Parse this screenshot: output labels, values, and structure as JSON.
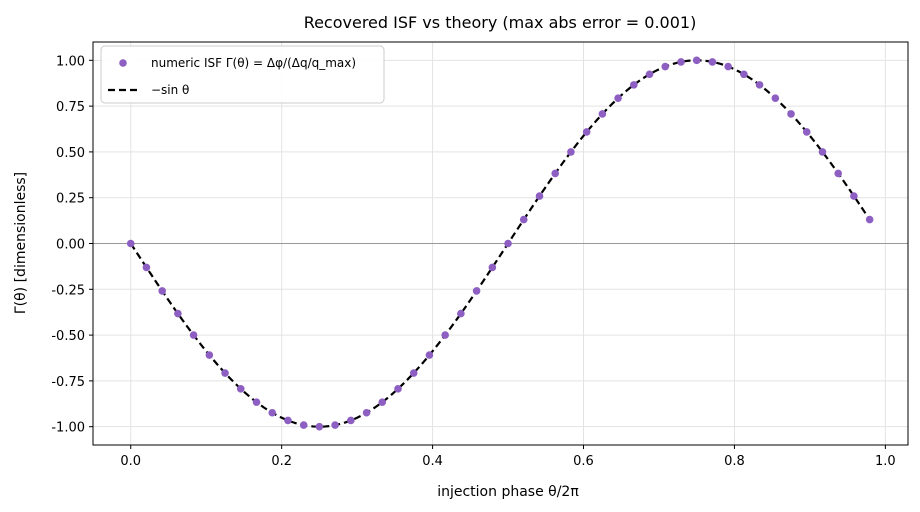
{
  "chart_data": {
    "type": "scatter",
    "title": "Recovered ISF vs theory (max abs error = 0.001)",
    "xlabel": "injection phase θ/2π",
    "ylabel": "Γ(θ) [dimensionless]",
    "xlim": [
      -0.05,
      1.03
    ],
    "ylim": [
      -1.1,
      1.1
    ],
    "x_ticks": [
      0.0,
      0.2,
      0.4,
      0.6,
      0.8,
      1.0
    ],
    "x_tick_labels": [
      "0.0",
      "0.2",
      "0.4",
      "0.6",
      "0.8",
      "1.0"
    ],
    "y_ticks": [
      1.0,
      0.75,
      0.5,
      0.25,
      0.0,
      -0.25,
      -0.5,
      -0.75,
      -1.0
    ],
    "y_tick_labels": [
      "1.00",
      "0.75",
      "0.50",
      "0.25",
      "0.00",
      "-0.25",
      "-0.50",
      "-0.75",
      "-1.00"
    ],
    "grid": true,
    "legend_position": "top-left",
    "series": [
      {
        "name": "numeric ISF Γ(θ) = Δφ/(Δq/q_max)",
        "kind": "scatter",
        "color": "#8e5fc2",
        "x": [
          0.0,
          0.0208,
          0.0417,
          0.0625,
          0.0833,
          0.1042,
          0.125,
          0.1458,
          0.1667,
          0.1875,
          0.2083,
          0.2292,
          0.25,
          0.2708,
          0.2917,
          0.3125,
          0.3333,
          0.3542,
          0.375,
          0.3958,
          0.4167,
          0.4375,
          0.4583,
          0.4792,
          0.5,
          0.5208,
          0.5417,
          0.5625,
          0.5833,
          0.6042,
          0.625,
          0.6458,
          0.6667,
          0.6875,
          0.7083,
          0.7292,
          0.75,
          0.7708,
          0.7917,
          0.8125,
          0.8333,
          0.8542,
          0.875,
          0.8958,
          0.9167,
          0.9375,
          0.9583,
          0.9792
        ],
        "y": [
          0.0,
          -0.1305,
          -0.2588,
          -0.3827,
          -0.5,
          -0.6088,
          -0.7071,
          -0.7934,
          -0.866,
          -0.9239,
          -0.9659,
          -0.9914,
          -1.0,
          -0.9914,
          -0.9659,
          -0.9239,
          -0.866,
          -0.7934,
          -0.7071,
          -0.6088,
          -0.5,
          -0.3827,
          -0.2588,
          -0.1305,
          0.0,
          0.1305,
          0.2588,
          0.3827,
          0.5,
          0.6088,
          0.7071,
          0.7934,
          0.866,
          0.9239,
          0.9659,
          0.9914,
          1.0,
          0.9914,
          0.9659,
          0.9239,
          0.866,
          0.7934,
          0.7071,
          0.6088,
          0.5,
          0.3827,
          0.2588,
          0.1305
        ]
      },
      {
        "name": "−sin θ",
        "kind": "line",
        "style": "dashed",
        "color": "#000000",
        "function": "-sin(2*pi*x)",
        "x_range": [
          0.0,
          0.9792
        ]
      }
    ],
    "reference_line": {
      "y": 0.0,
      "color": "#808080"
    }
  }
}
